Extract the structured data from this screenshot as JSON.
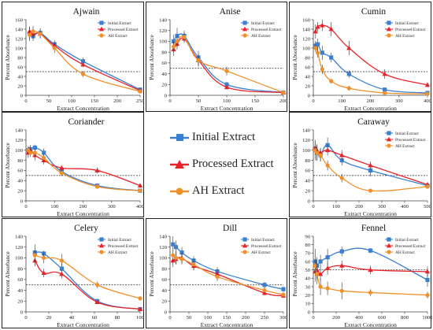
{
  "colors": {
    "initial": "#3b7fd0",
    "processed": "#e8232a",
    "ah": "#f0902a",
    "threshold": "#222222",
    "axis": "#444444"
  },
  "center_legend": {
    "items": [
      {
        "label": "Initial Extract",
        "color": "#3b7fd0",
        "marker": "square"
      },
      {
        "label": "Processed Extract",
        "color": "#e8232a",
        "marker": "triangle"
      },
      {
        "label": "AH Extract",
        "color": "#f0902a",
        "marker": "circle"
      }
    ]
  },
  "chart_data": [
    {
      "type": "line",
      "title": "Ajwain",
      "ylabel": "Percent Absorbance",
      "xlabel": "Extract Concentration",
      "xlim": [
        0,
        250
      ],
      "ylim": [
        0,
        160
      ],
      "xticks": [
        0,
        50,
        100,
        150,
        200,
        250
      ],
      "yticks": [
        0,
        20,
        40,
        60,
        80,
        100,
        120,
        140,
        160
      ],
      "threshold": 50,
      "legend": {
        "position": "top-right",
        "items": [
          "Initial Extract",
          "Processed Extract",
          "AH Extract"
        ]
      },
      "series": [
        {
          "name": "Initial Extract",
          "x": [
            7.8,
            15.6,
            31.3,
            62.5,
            125,
            250
          ],
          "y": [
            130,
            125,
            132,
            108,
            72,
            12
          ],
          "err": [
            15,
            10,
            10,
            8,
            8,
            3
          ]
        },
        {
          "name": "Processed Extract",
          "x": [
            7.8,
            15.6,
            31.3,
            62.5,
            125,
            250
          ],
          "y": [
            135,
            130,
            130,
            105,
            65,
            10
          ],
          "err": [
            10,
            10,
            8,
            8,
            6,
            3
          ]
        },
        {
          "name": "AH Extract",
          "x": [
            7.8,
            15.6,
            31.3,
            62.5,
            125,
            250
          ],
          "y": [
            128,
            135,
            130,
            100,
            45,
            8
          ],
          "err": [
            10,
            12,
            10,
            10,
            6,
            3
          ]
        }
      ]
    },
    {
      "type": "line",
      "title": "Anise",
      "ylabel": "Percent Absorbance",
      "xlabel": "Extract Concentration",
      "xlim": [
        0,
        200
      ],
      "ylim": [
        0,
        140
      ],
      "xticks": [
        0,
        50,
        100,
        150,
        200
      ],
      "yticks": [
        0,
        20,
        40,
        60,
        80,
        100,
        120,
        140
      ],
      "threshold": 50,
      "legend": {
        "position": "top-right",
        "items": [
          "Initial Extract",
          "Processed Extract",
          "AH Extract"
        ]
      },
      "series": [
        {
          "name": "Initial Extract",
          "x": [
            6.25,
            12.5,
            25,
            50,
            100,
            200
          ],
          "y": [
            100,
            110,
            110,
            70,
            20,
            5
          ],
          "err": [
            12,
            15,
            10,
            12,
            5,
            3
          ]
        },
        {
          "name": "Processed Extract",
          "x": [
            6.25,
            12.5,
            25,
            50,
            100,
            200
          ],
          "y": [
            85,
            95,
            105,
            65,
            15,
            5
          ],
          "err": [
            12,
            10,
            8,
            10,
            4,
            3
          ]
        },
        {
          "name": "AH Extract",
          "x": [
            6.25,
            12.5,
            25,
            50,
            100,
            200
          ],
          "y": [
            90,
            100,
            108,
            65,
            45,
            5
          ],
          "err": [
            10,
            10,
            8,
            12,
            8,
            3
          ]
        }
      ]
    },
    {
      "type": "line",
      "title": "Cumin",
      "ylabel": "Percent Absorbance",
      "xlabel": "Extract Concentration",
      "xlim": [
        0,
        400
      ],
      "ylim": [
        0,
        160
      ],
      "xticks": [
        0,
        100,
        200,
        300,
        400
      ],
      "yticks": [
        0,
        20,
        40,
        60,
        80,
        100,
        120,
        140,
        160
      ],
      "threshold": 50,
      "legend": {
        "position": "top-right",
        "items": [
          "Initial Extract",
          "Processed Extract",
          "AH Extract"
        ]
      },
      "series": [
        {
          "name": "Initial Extract",
          "x": [
            7.8,
            15.6,
            31.3,
            62.5,
            125,
            250,
            400
          ],
          "y": [
            105,
            108,
            90,
            80,
            45,
            12,
            5
          ],
          "err": [
            10,
            12,
            15,
            10,
            8,
            4,
            3
          ]
        },
        {
          "name": "Processed Extract",
          "x": [
            7.8,
            15.6,
            31.3,
            62.5,
            125,
            250,
            400
          ],
          "y": [
            135,
            145,
            148,
            140,
            100,
            45,
            22
          ],
          "err": [
            15,
            10,
            12,
            15,
            15,
            10,
            5
          ]
        },
        {
          "name": "AH Extract",
          "x": [
            7.8,
            15.6,
            31.3,
            62.5,
            125,
            250,
            400
          ],
          "y": [
            100,
            90,
            55,
            30,
            15,
            5,
            3
          ],
          "err": [
            8,
            10,
            10,
            5,
            5,
            3,
            2
          ]
        }
      ]
    },
    {
      "type": "line",
      "title": "Coriander",
      "ylabel": "Percent Absorbance",
      "xlabel": "Extract Concentration",
      "xlim": [
        0,
        400
      ],
      "ylim": [
        0,
        140
      ],
      "xticks": [
        0,
        100,
        200,
        300,
        400
      ],
      "yticks": [
        0,
        20,
        40,
        60,
        80,
        100,
        120,
        140
      ],
      "threshold": 50,
      "legend": {
        "position": "none",
        "items": []
      },
      "series": [
        {
          "name": "Initial Extract",
          "x": [
            7.8,
            15.6,
            31.3,
            62.5,
            125,
            250,
            400
          ],
          "y": [
            100,
            102,
            105,
            95,
            58,
            30,
            20
          ],
          "err": [
            8,
            8,
            6,
            8,
            6,
            4,
            3
          ]
        },
        {
          "name": "Processed Extract",
          "x": [
            7.8,
            15.6,
            31.3,
            62.5,
            125,
            250,
            400
          ],
          "y": [
            95,
            100,
            90,
            80,
            65,
            60,
            30
          ],
          "err": [
            10,
            8,
            10,
            8,
            5,
            6,
            4
          ]
        },
        {
          "name": "AH Extract",
          "x": [
            7.8,
            15.6,
            31.3,
            62.5,
            125,
            250,
            400
          ],
          "y": [
            100,
            95,
            95,
            85,
            55,
            28,
            20
          ],
          "err": [
            8,
            8,
            8,
            8,
            6,
            4,
            3
          ]
        }
      ]
    },
    {
      "type": "line",
      "title": "Caraway",
      "ylabel": "Percent Absorbance",
      "xlabel": "Extract Concentration",
      "xlim": [
        0,
        500
      ],
      "ylim": [
        0,
        140
      ],
      "xticks": [
        0,
        100,
        200,
        300,
        400,
        500
      ],
      "yticks": [
        0,
        20,
        40,
        60,
        80,
        100,
        120,
        140
      ],
      "threshold": 50,
      "legend": {
        "position": "top-right",
        "items": [
          "Initial Extract",
          "Processed Extract",
          "AH Extract"
        ]
      },
      "series": [
        {
          "name": "Initial Extract",
          "x": [
            7.8,
            15.6,
            31.3,
            62.5,
            125,
            250,
            500
          ],
          "y": [
            100,
            95,
            90,
            110,
            80,
            60,
            30
          ],
          "err": [
            20,
            15,
            12,
            15,
            10,
            12,
            5
          ]
        },
        {
          "name": "Processed Extract",
          "x": [
            7.8,
            15.6,
            31.3,
            62.5,
            125,
            250,
            500
          ],
          "y": [
            105,
            100,
            95,
            100,
            90,
            70,
            32
          ],
          "err": [
            15,
            12,
            10,
            10,
            10,
            8,
            5
          ]
        },
        {
          "name": "AH Extract",
          "x": [
            7.8,
            15.6,
            31.3,
            62.5,
            125,
            250,
            500
          ],
          "y": [
            100,
            95,
            90,
            70,
            45,
            20,
            28
          ],
          "err": [
            15,
            15,
            12,
            10,
            8,
            3,
            4
          ]
        }
      ]
    },
    {
      "type": "line",
      "title": "Celery",
      "ylabel": "Percent Absorbance",
      "xlabel": "Extract Concentration",
      "xlim": [
        0,
        100
      ],
      "ylim": [
        0,
        140
      ],
      "xticks": [
        0,
        20,
        40,
        60,
        80,
        100
      ],
      "yticks": [
        0,
        20,
        40,
        60,
        80,
        100,
        120,
        140
      ],
      "threshold": 50,
      "legend": {
        "position": "top-right",
        "items": [
          "Initial Extract",
          "Processed Extract",
          "AH Extract"
        ]
      },
      "series": [
        {
          "name": "Initial Extract",
          "x": [
            7.8,
            15.6,
            31.3,
            62.5,
            100
          ],
          "y": [
            110,
            108,
            80,
            20,
            5
          ],
          "err": [
            8,
            5,
            10,
            4,
            2
          ]
        },
        {
          "name": "Processed Extract",
          "x": [
            7.8,
            15.6,
            31.3,
            62.5,
            100
          ],
          "y": [
            95,
            72,
            70,
            18,
            5
          ],
          "err": [
            10,
            8,
            8,
            4,
            2
          ]
        },
        {
          "name": "AH Extract",
          "x": [
            7.8,
            15.6,
            31.3,
            62.5,
            100
          ],
          "y": [
            105,
            100,
            95,
            50,
            25
          ],
          "err": [
            20,
            10,
            12,
            6,
            4
          ]
        }
      ]
    },
    {
      "type": "line",
      "title": "Dill",
      "ylabel": "Percent Absorbance",
      "xlabel": "Extract Concentration",
      "xlim": [
        0,
        300
      ],
      "ylim": [
        0,
        140
      ],
      "xticks": [
        0,
        50,
        100,
        150,
        200,
        250,
        300
      ],
      "yticks": [
        0,
        20,
        40,
        60,
        80,
        100,
        120,
        140
      ],
      "threshold": 50,
      "legend": {
        "position": "top-right",
        "items": [
          "Initial Extract",
          "Processed Extract",
          "AH Extract"
        ]
      },
      "series": [
        {
          "name": "Initial Extract",
          "x": [
            7.8,
            15.6,
            31.3,
            62.5,
            125,
            250,
            300
          ],
          "y": [
            125,
            120,
            110,
            95,
            75,
            50,
            42
          ],
          "err": [
            15,
            12,
            10,
            8,
            8,
            6,
            5
          ]
        },
        {
          "name": "Processed Extract",
          "x": [
            7.8,
            15.6,
            31.3,
            62.5,
            125,
            250,
            300
          ],
          "y": [
            95,
            98,
            100,
            85,
            70,
            35,
            30
          ],
          "err": [
            12,
            10,
            10,
            8,
            8,
            5,
            4
          ]
        },
        {
          "name": "AH Extract",
          "x": [
            7.8,
            15.6,
            31.3,
            62.5,
            125,
            250,
            300
          ],
          "y": [
            105,
            100,
            98,
            88,
            65,
            40,
            32
          ],
          "err": [
            15,
            12,
            10,
            10,
            8,
            5,
            4
          ]
        }
      ]
    },
    {
      "type": "line",
      "title": "Fennel",
      "ylabel": "Percent Absorbance",
      "xlabel": "Extract Concentration",
      "xlim": [
        0,
        1000
      ],
      "ylim": [
        0,
        90
      ],
      "xticks": [
        0,
        200,
        400,
        600,
        800,
        1000
      ],
      "yticks": [
        0,
        10,
        20,
        30,
        40,
        50,
        60,
        70,
        80,
        90
      ],
      "threshold": 50,
      "legend": {
        "position": "top-right",
        "items": [
          "Initial Extract",
          "Processed Extract",
          "AH Extract"
        ]
      },
      "series": [
        {
          "name": "Initial Extract",
          "x": [
            15.6,
            31.3,
            62.5,
            125,
            250,
            500,
            1000
          ],
          "y": [
            60,
            55,
            60,
            65,
            72,
            73,
            38
          ],
          "err": [
            15,
            10,
            8,
            10,
            6,
            3,
            8
          ]
        },
        {
          "name": "Processed Extract",
          "x": [
            15.6,
            31.3,
            62.5,
            125,
            250,
            500,
            1000
          ],
          "y": [
            48,
            50,
            45,
            52,
            55,
            50,
            48
          ],
          "err": [
            12,
            10,
            8,
            8,
            6,
            5,
            6
          ]
        },
        {
          "name": "AH Extract",
          "x": [
            15.6,
            31.3,
            62.5,
            125,
            250,
            500,
            1000
          ],
          "y": [
            55,
            45,
            30,
            28,
            25,
            23,
            20
          ],
          "err": [
            10,
            12,
            10,
            8,
            10,
            4,
            4
          ]
        }
      ]
    }
  ]
}
